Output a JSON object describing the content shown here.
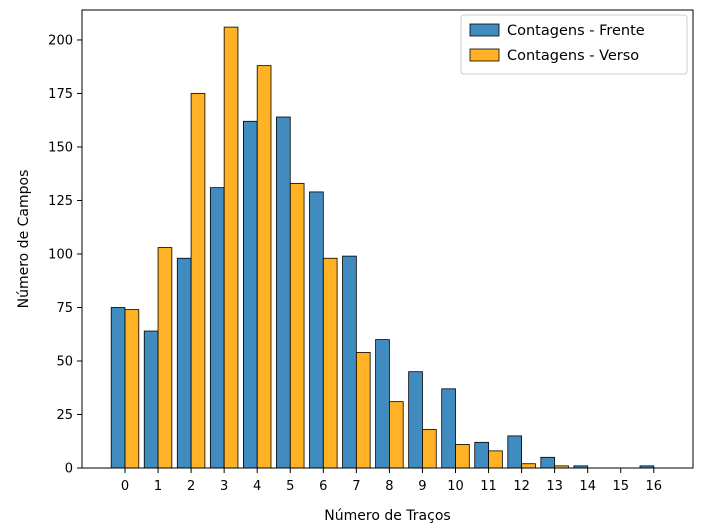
{
  "chart_data": {
    "type": "bar",
    "title": "",
    "xlabel": "Número de Traços",
    "ylabel": "Número de Campos",
    "categories": [
      "0",
      "1",
      "2",
      "3",
      "4",
      "5",
      "6",
      "7",
      "8",
      "9",
      "10",
      "11",
      "12",
      "13",
      "14",
      "15",
      "16"
    ],
    "ylim": [
      0,
      214
    ],
    "yticks": [
      0,
      25,
      50,
      75,
      100,
      125,
      150,
      175,
      200
    ],
    "grid": false,
    "legend_position": "top-right",
    "series": [
      {
        "name": "Contagens - Frente",
        "color": "#1f77b4",
        "values": [
          75,
          64,
          98,
          131,
          162,
          164,
          129,
          99,
          60,
          45,
          37,
          12,
          15,
          5,
          1,
          0,
          1
        ]
      },
      {
        "name": "Contagens - Verso",
        "color": "#ffa500",
        "values": [
          74,
          103,
          175,
          206,
          188,
          133,
          98,
          54,
          31,
          18,
          11,
          8,
          2,
          1,
          0,
          0,
          0
        ]
      }
    ]
  }
}
